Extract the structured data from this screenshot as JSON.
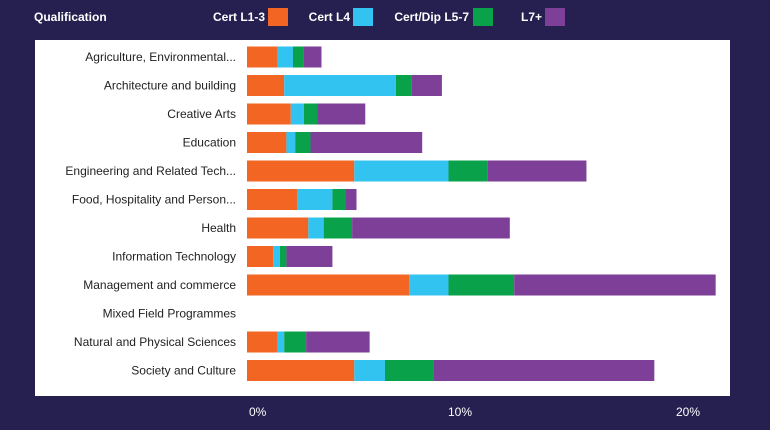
{
  "legend": {
    "title": "Qualification"
  },
  "chart_data": {
    "type": "bar",
    "orientation": "horizontal",
    "stacked": true,
    "title": "",
    "xlabel": "",
    "ylabel": "",
    "xlim": [
      0,
      21.6
    ],
    "x_ticks": [
      0,
      10,
      20
    ],
    "x_tick_labels": [
      "0%",
      "10%",
      "20%"
    ],
    "categories": [
      "Agriculture, Environmental...",
      "Architecture and building",
      "Creative Arts",
      "Education",
      "Engineering and Related Tech...",
      "Food, Hospitality and Person...",
      "Health",
      "Information Technology",
      "Management and commerce",
      "Mixed Field Programmes",
      "Natural and Physical Sciences",
      "Society and Culture"
    ],
    "series": [
      {
        "name": "Cert L1-3",
        "color": "#f26522",
        "values": [
          1.4,
          1.7,
          2.0,
          1.8,
          4.9,
          2.3,
          2.8,
          1.2,
          7.4,
          0,
          1.4,
          4.9
        ]
      },
      {
        "name": "Cert L4",
        "color": "#33c3f0",
        "values": [
          0.7,
          5.1,
          0.6,
          0.4,
          4.3,
          1.6,
          0.7,
          0.3,
          1.8,
          0,
          0.3,
          1.4
        ]
      },
      {
        "name": "Cert/Dip L5-7",
        "color": "#0aa14b",
        "values": [
          0.5,
          0.7,
          0.6,
          0.7,
          1.8,
          0.6,
          1.3,
          0.3,
          3.0,
          0,
          1.0,
          2.2
        ]
      },
      {
        "name": "L7+",
        "color": "#7e3f98",
        "values": [
          0.8,
          1.4,
          2.2,
          5.1,
          4.5,
          0.5,
          7.2,
          2.1,
          9.2,
          0,
          2.9,
          10.1
        ]
      }
    ]
  }
}
